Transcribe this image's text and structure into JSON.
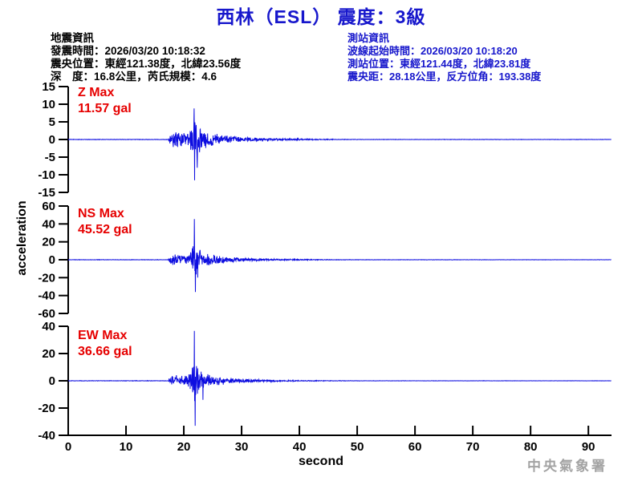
{
  "header": {
    "title": "西林（ESL） 震度：3級",
    "quake_info": {
      "heading": "地震資訊",
      "lines": [
        "發震時間：2026/03/20 10:18:32",
        "震央位置：東經121.38度，北緯23.56度",
        "深　度：16.8公里，芮氏規模：4.6"
      ]
    },
    "station_info": {
      "heading": "測站資訊",
      "lines": [
        "波線起始時間：2026/03/20 10:18:20",
        "測站位置：東經121.44度，北緯23.81度",
        "震央距：28.18公里，反方位角：193.38度"
      ]
    }
  },
  "footer": {
    "agency": "中央氣象署"
  },
  "colors": {
    "text_blue": "#1717CC",
    "waveform_blue": "#0D0DE0",
    "label_red": "#E60000",
    "axis_black": "#000000",
    "agency_gray": "#A3A3A3"
  },
  "chart_data": {
    "type": "line",
    "title": "西林（ESL） 震度：3級",
    "xlabel": "second",
    "ylabel": "acceleration",
    "x_range": [
      0,
      94
    ],
    "x_ticks": [
      0,
      10,
      20,
      30,
      40,
      50,
      60,
      70,
      80,
      90
    ],
    "grid": false,
    "legend": "none",
    "channels": [
      {
        "name": "Z",
        "label": "Z Max",
        "max_label": "11.57 gal",
        "max_gal": 11.57,
        "ylim": [
          -15,
          15
        ],
        "yticks": [
          15,
          10,
          5,
          0,
          -5,
          -10,
          -15
        ],
        "units": "gal",
        "envelope": [
          [
            0,
            0.07
          ],
          [
            17.3,
            0.07
          ],
          [
            17.6,
            1.5
          ],
          [
            18.0,
            2.6
          ],
          [
            19,
            2.3
          ],
          [
            20,
            2.1
          ],
          [
            20.7,
            2.8
          ],
          [
            21.3,
            4.2
          ],
          [
            21.7,
            7.5
          ],
          [
            21.9,
            9.5
          ],
          [
            22.2,
            6.5
          ],
          [
            22.6,
            4.8
          ],
          [
            23.2,
            3.6
          ],
          [
            24,
            2.7
          ],
          [
            25,
            2.0
          ],
          [
            26.5,
            1.5
          ],
          [
            28,
            1.1
          ],
          [
            30,
            0.8
          ],
          [
            32,
            0.6
          ],
          [
            34,
            0.45
          ],
          [
            36.5,
            0.35
          ],
          [
            39,
            0.27
          ],
          [
            42,
            0.2
          ],
          [
            45,
            0.14
          ],
          [
            47,
            0.09
          ],
          [
            50,
            0.06
          ],
          [
            94,
            0.05
          ]
        ],
        "peaks": [
          [
            21.76,
            8.8
          ],
          [
            21.87,
            -11.57
          ],
          [
            22.3,
            -8.0
          ]
        ]
      },
      {
        "name": "NS",
        "label": "NS Max",
        "max_label": "45.52 gal",
        "max_gal": 45.52,
        "ylim": [
          -60,
          60
        ],
        "yticks": [
          60,
          40,
          20,
          0,
          -20,
          -40,
          -60
        ],
        "units": "gal",
        "envelope": [
          [
            0,
            0.25
          ],
          [
            17.3,
            0.25
          ],
          [
            17.6,
            4.5
          ],
          [
            18.0,
            7.5
          ],
          [
            19,
            6.5
          ],
          [
            20,
            6.0
          ],
          [
            20.7,
            7.5
          ],
          [
            21.3,
            11
          ],
          [
            21.7,
            24
          ],
          [
            21.9,
            30
          ],
          [
            22.2,
            19
          ],
          [
            22.6,
            14
          ],
          [
            23.2,
            11
          ],
          [
            24,
            8.5
          ],
          [
            25,
            6.5
          ],
          [
            26.5,
            4.8
          ],
          [
            28,
            3.5
          ],
          [
            30,
            2.5
          ],
          [
            32,
            1.9
          ],
          [
            34,
            1.4
          ],
          [
            36.5,
            1.0
          ],
          [
            39,
            0.75
          ],
          [
            42,
            0.55
          ],
          [
            45,
            0.4
          ],
          [
            48,
            0.3
          ],
          [
            52,
            0.22
          ],
          [
            94,
            0.16
          ]
        ],
        "peaks": [
          [
            21.82,
            45.52
          ],
          [
            21.99,
            -36
          ],
          [
            22.4,
            -20
          ]
        ]
      },
      {
        "name": "EW",
        "label": "EW Max",
        "max_label": "36.66 gal",
        "max_gal": 36.66,
        "ylim": [
          -40,
          40
        ],
        "yticks": [
          40,
          20,
          0,
          -20,
          -40
        ],
        "units": "gal",
        "envelope": [
          [
            0,
            0.18
          ],
          [
            17.3,
            0.18
          ],
          [
            17.6,
            3.2
          ],
          [
            18.0,
            5.5
          ],
          [
            19,
            4.8
          ],
          [
            20,
            4.4
          ],
          [
            20.7,
            5.5
          ],
          [
            21.3,
            8
          ],
          [
            21.7,
            16
          ],
          [
            21.9,
            20
          ],
          [
            22.2,
            13
          ],
          [
            22.6,
            9.5
          ],
          [
            23.2,
            7.5
          ],
          [
            24,
            5.8
          ],
          [
            25,
            4.4
          ],
          [
            26.5,
            3.2
          ],
          [
            28,
            2.4
          ],
          [
            30,
            1.7
          ],
          [
            32,
            1.25
          ],
          [
            34,
            0.9
          ],
          [
            36.5,
            0.65
          ],
          [
            39,
            0.48
          ],
          [
            42,
            0.35
          ],
          [
            45,
            0.25
          ],
          [
            48,
            0.18
          ],
          [
            52,
            0.13
          ],
          [
            94,
            0.1
          ]
        ],
        "peaks": [
          [
            21.82,
            36.66
          ],
          [
            21.97,
            -33
          ],
          [
            23.3,
            -14
          ]
        ]
      }
    ]
  }
}
